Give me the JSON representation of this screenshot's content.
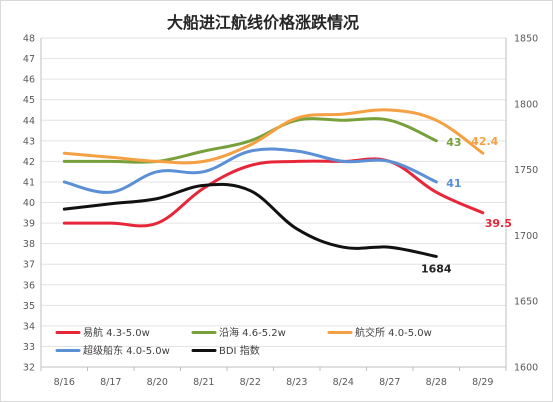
{
  "chart_data": {
    "type": "line",
    "title": "大船进江航线价格涨跌情况",
    "categories": [
      "8/16",
      "8/17",
      "8/20",
      "8/21",
      "8/22",
      "8/23",
      "8/24",
      "8/27",
      "8/28",
      "8/29"
    ],
    "ylim_left": [
      32,
      48
    ],
    "ylim_right": [
      1600,
      1850
    ],
    "left_ticks": [
      "32",
      "33",
      "34",
      "35",
      "36",
      "37",
      "38",
      "39",
      "40",
      "41",
      "42",
      "43",
      "44",
      "45",
      "46",
      "47",
      "48"
    ],
    "right_ticks": [
      "1600",
      "1650",
      "1700",
      "1750",
      "1800",
      "1850"
    ],
    "grid": "horizontal",
    "legend_position": "bottom-left",
    "series": [
      {
        "name": "易航 4.3-5.0w",
        "axis": "left",
        "color": "#e8263a",
        "values": [
          39,
          39,
          39,
          40.7,
          41.8,
          42,
          42,
          42,
          40.5,
          39.5
        ],
        "end_label": "39.5"
      },
      {
        "name": "沿海 4.6-5.2w",
        "axis": "left",
        "color": "#77a03b",
        "values": [
          42,
          42,
          42,
          42.5,
          43,
          44,
          44,
          44,
          43,
          null
        ],
        "end_label": "43"
      },
      {
        "name": "航交所 4.0-5.0w",
        "axis": "left",
        "color": "#f5a043",
        "values": [
          42.4,
          42.2,
          42,
          42,
          42.8,
          44.1,
          44.3,
          44.5,
          44,
          42.4
        ],
        "end_label": "42.4"
      },
      {
        "name": "超级船东 4.0-5.0w",
        "axis": "left",
        "color": "#5b8fd6",
        "values": [
          41,
          40.5,
          41.5,
          41.5,
          42.5,
          42.5,
          42,
          42,
          41,
          null
        ],
        "end_label": "41"
      },
      {
        "name": "BDI 指数",
        "axis": "right",
        "color": "#111111",
        "values": [
          1720,
          1724,
          1728,
          1738,
          1734,
          1705,
          1691,
          1691,
          1684,
          null
        ],
        "end_label": "1684"
      }
    ]
  }
}
